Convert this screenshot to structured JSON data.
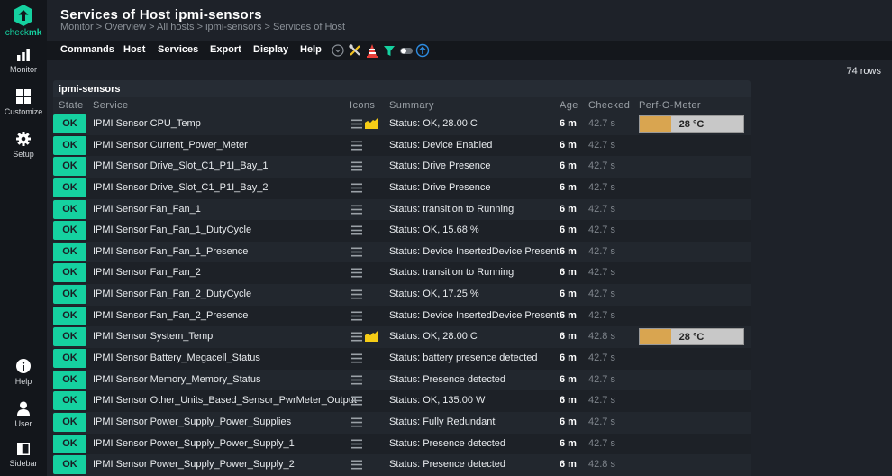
{
  "app": {
    "logo_text_a": "check",
    "logo_text_b": "mk"
  },
  "sidebar": {
    "items": [
      {
        "label": "Monitor",
        "icon": "bar-chart-icon"
      },
      {
        "label": "Customize",
        "icon": "grid-icon"
      },
      {
        "label": "Setup",
        "icon": "gear-icon"
      },
      {
        "label": "Help",
        "icon": "info-icon"
      },
      {
        "label": "User",
        "icon": "user-icon"
      },
      {
        "label": "Sidebar",
        "icon": "sidebar-icon"
      }
    ]
  },
  "header": {
    "title": "Services of Host ipmi-sensors",
    "breadcrumb": "Monitor > Overview > All hosts > ipmi-sensors > Services of Host"
  },
  "menubar": {
    "items": [
      "Commands",
      "Host",
      "Services",
      "Export",
      "Display",
      "Help"
    ],
    "icons": [
      "chevron-down-circle-icon",
      "tools-icon",
      "warning-cone-icon",
      "filter-icon",
      "toggle-icon",
      "upload-icon"
    ]
  },
  "rows_count": "74 rows",
  "table": {
    "group": "ipmi-sensors",
    "columns": {
      "state": "State",
      "service": "Service",
      "icons": "Icons",
      "summary": "Summary",
      "age": "Age",
      "checked": "Checked",
      "perf": "Perf-O-Meter"
    },
    "colors": {
      "ok": "#15d1a0",
      "perf_fill": "#d9a550",
      "perf_bg": "#c8c8c8"
    },
    "rows": [
      {
        "state": "OK",
        "service": "IPMI Sensor CPU_Temp",
        "graph": true,
        "summary": "Status: OK, 28.00 C",
        "age": "6 m",
        "checked": "42.7 s",
        "perf": "28 °C",
        "perf_pct": 30
      },
      {
        "state": "OK",
        "service": "IPMI Sensor Current_Power_Meter",
        "graph": false,
        "summary": "Status: Device Enabled",
        "age": "6 m",
        "checked": "42.7 s"
      },
      {
        "state": "OK",
        "service": "IPMI Sensor Drive_Slot_C1_P1I_Bay_1",
        "graph": false,
        "summary": "Status: Drive Presence",
        "age": "6 m",
        "checked": "42.7 s"
      },
      {
        "state": "OK",
        "service": "IPMI Sensor Drive_Slot_C1_P1I_Bay_2",
        "graph": false,
        "summary": "Status: Drive Presence",
        "age": "6 m",
        "checked": "42.7 s"
      },
      {
        "state": "OK",
        "service": "IPMI Sensor Fan_Fan_1",
        "graph": false,
        "summary": "Status: transition to Running",
        "age": "6 m",
        "checked": "42.7 s"
      },
      {
        "state": "OK",
        "service": "IPMI Sensor Fan_Fan_1_DutyCycle",
        "graph": false,
        "summary": "Status: OK, 15.68 %",
        "age": "6 m",
        "checked": "42.7 s"
      },
      {
        "state": "OK",
        "service": "IPMI Sensor Fan_Fan_1_Presence",
        "graph": false,
        "summary": "Status: Device InsertedDevice Present",
        "age": "6 m",
        "checked": "42.7 s"
      },
      {
        "state": "OK",
        "service": "IPMI Sensor Fan_Fan_2",
        "graph": false,
        "summary": "Status: transition to Running",
        "age": "6 m",
        "checked": "42.7 s"
      },
      {
        "state": "OK",
        "service": "IPMI Sensor Fan_Fan_2_DutyCycle",
        "graph": false,
        "summary": "Status: OK, 17.25 %",
        "age": "6 m",
        "checked": "42.7 s"
      },
      {
        "state": "OK",
        "service": "IPMI Sensor Fan_Fan_2_Presence",
        "graph": false,
        "summary": "Status: Device InsertedDevice Present",
        "age": "6 m",
        "checked": "42.7 s"
      },
      {
        "state": "OK",
        "service": "IPMI Sensor System_Temp",
        "graph": true,
        "summary": "Status: OK, 28.00 C",
        "age": "6 m",
        "checked": "42.8 s",
        "perf": "28 °C",
        "perf_pct": 30
      },
      {
        "state": "OK",
        "service": "IPMI Sensor Battery_Megacell_Status",
        "graph": false,
        "summary": "Status: battery presence detected",
        "age": "6 m",
        "checked": "42.7 s"
      },
      {
        "state": "OK",
        "service": "IPMI Sensor Memory_Memory_Status",
        "graph": false,
        "summary": "Status: Presence detected",
        "age": "6 m",
        "checked": "42.7 s"
      },
      {
        "state": "OK",
        "service": "IPMI Sensor Other_Units_Based_Sensor_PwrMeter_Output",
        "graph": false,
        "summary": "Status: OK, 135.00 W",
        "age": "6 m",
        "checked": "42.7 s"
      },
      {
        "state": "OK",
        "service": "IPMI Sensor Power_Supply_Power_Supplies",
        "graph": false,
        "summary": "Status: Fully Redundant",
        "age": "6 m",
        "checked": "42.7 s"
      },
      {
        "state": "OK",
        "service": "IPMI Sensor Power_Supply_Power_Supply_1",
        "graph": false,
        "summary": "Status: Presence detected",
        "age": "6 m",
        "checked": "42.7 s"
      },
      {
        "state": "OK",
        "service": "IPMI Sensor Power_Supply_Power_Supply_2",
        "graph": false,
        "summary": "Status: Presence detected",
        "age": "6 m",
        "checked": "42.8 s"
      }
    ]
  }
}
